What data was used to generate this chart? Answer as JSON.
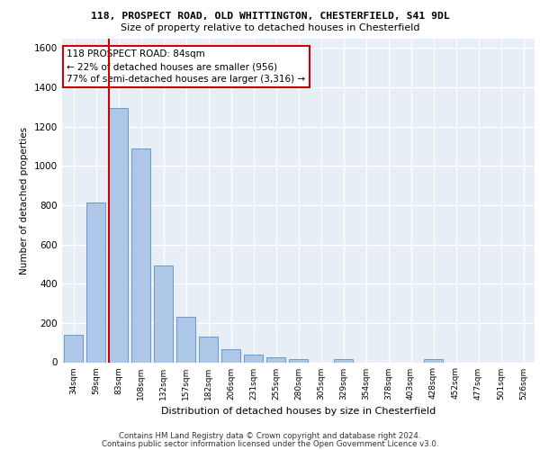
{
  "title": "118, PROSPECT ROAD, OLD WHITTINGTON, CHESTERFIELD, S41 9DL",
  "subtitle": "Size of property relative to detached houses in Chesterfield",
  "xlabel": "Distribution of detached houses by size in Chesterfield",
  "ylabel": "Number of detached properties",
  "categories": [
    "34sqm",
    "59sqm",
    "83sqm",
    "108sqm",
    "132sqm",
    "157sqm",
    "182sqm",
    "206sqm",
    "231sqm",
    "255sqm",
    "280sqm",
    "305sqm",
    "329sqm",
    "354sqm",
    "378sqm",
    "403sqm",
    "428sqm",
    "452sqm",
    "477sqm",
    "501sqm",
    "526sqm"
  ],
  "values": [
    140,
    815,
    1295,
    1090,
    495,
    230,
    130,
    65,
    38,
    25,
    15,
    0,
    15,
    0,
    0,
    0,
    15,
    0,
    0,
    0,
    0
  ],
  "bar_color": "#aec6e8",
  "bar_edge_color": "#5a8fc0",
  "vline_color": "#cc0000",
  "annotation_text": "118 PROSPECT ROAD: 84sqm\n← 22% of detached houses are smaller (956)\n77% of semi-detached houses are larger (3,316) →",
  "annotation_box_color": "#ffffff",
  "annotation_box_edge_color": "#cc0000",
  "ylim": [
    0,
    1650
  ],
  "yticks": [
    0,
    200,
    400,
    600,
    800,
    1000,
    1200,
    1400,
    1600
  ],
  "background_color": "#e8eef5",
  "grid_color": "#ffffff",
  "footer1": "Contains HM Land Registry data © Crown copyright and database right 2024.",
  "footer2": "Contains public sector information licensed under the Open Government Licence v3.0."
}
